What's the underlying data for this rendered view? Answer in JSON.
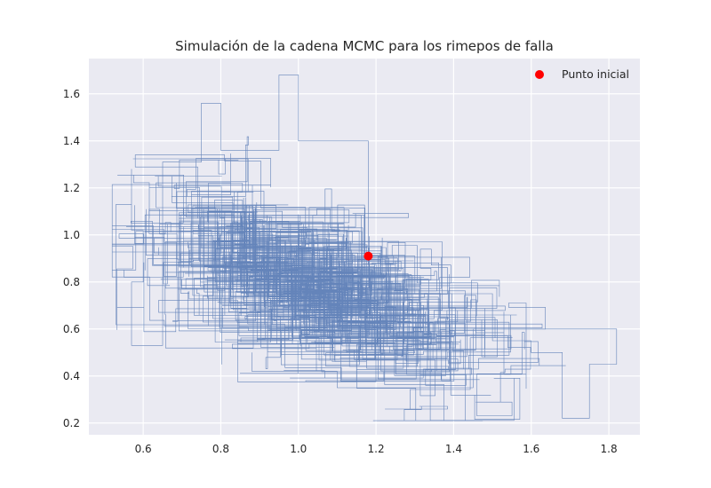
{
  "chart_data": {
    "type": "line",
    "title": "Simulación de la cadena MCMC para los rimepos de falla",
    "xlabel": "",
    "ylabel": "",
    "xlim": [
      0.46,
      1.88
    ],
    "ylim": [
      0.15,
      1.75
    ],
    "xticks": [
      "0.6",
      "0.8",
      "1.0",
      "1.2",
      "1.4",
      "1.6",
      "1.8"
    ],
    "yticks": [
      "0.2",
      "0.4",
      "0.6",
      "0.8",
      "1.0",
      "1.2",
      "1.4",
      "1.6"
    ],
    "grid": true,
    "legend_placement": "top-right",
    "colors": {
      "chain": "#4c72b0",
      "start_point": "#ff0000",
      "background": "#eaeaf2",
      "grid": "#ffffff"
    },
    "series": [
      {
        "name": "Punto inicial",
        "type": "scatter",
        "x": [
          1.18
        ],
        "y": [
          0.91
        ]
      }
    ],
    "chain_trace": {
      "style": "step",
      "description_points": [
        [
          0.53,
          1.13
        ],
        [
          0.57,
          1.28
        ],
        [
          0.57,
          1.02
        ],
        [
          0.6,
          0.8
        ],
        [
          0.57,
          0.53
        ],
        [
          0.65,
          1.31
        ],
        [
          0.75,
          1.56
        ],
        [
          0.8,
          1.36
        ],
        [
          0.95,
          1.68
        ],
        [
          1.0,
          1.4
        ],
        [
          1.18,
          0.91
        ],
        [
          1.3,
          0.75
        ],
        [
          1.5,
          0.55
        ],
        [
          1.6,
          0.5
        ],
        [
          1.68,
          0.22
        ],
        [
          1.75,
          0.45
        ],
        [
          1.82,
          0.6
        ],
        [
          1.45,
          0.35
        ],
        [
          1.1,
          0.42
        ],
        [
          0.88,
          0.5
        ]
      ]
    }
  }
}
